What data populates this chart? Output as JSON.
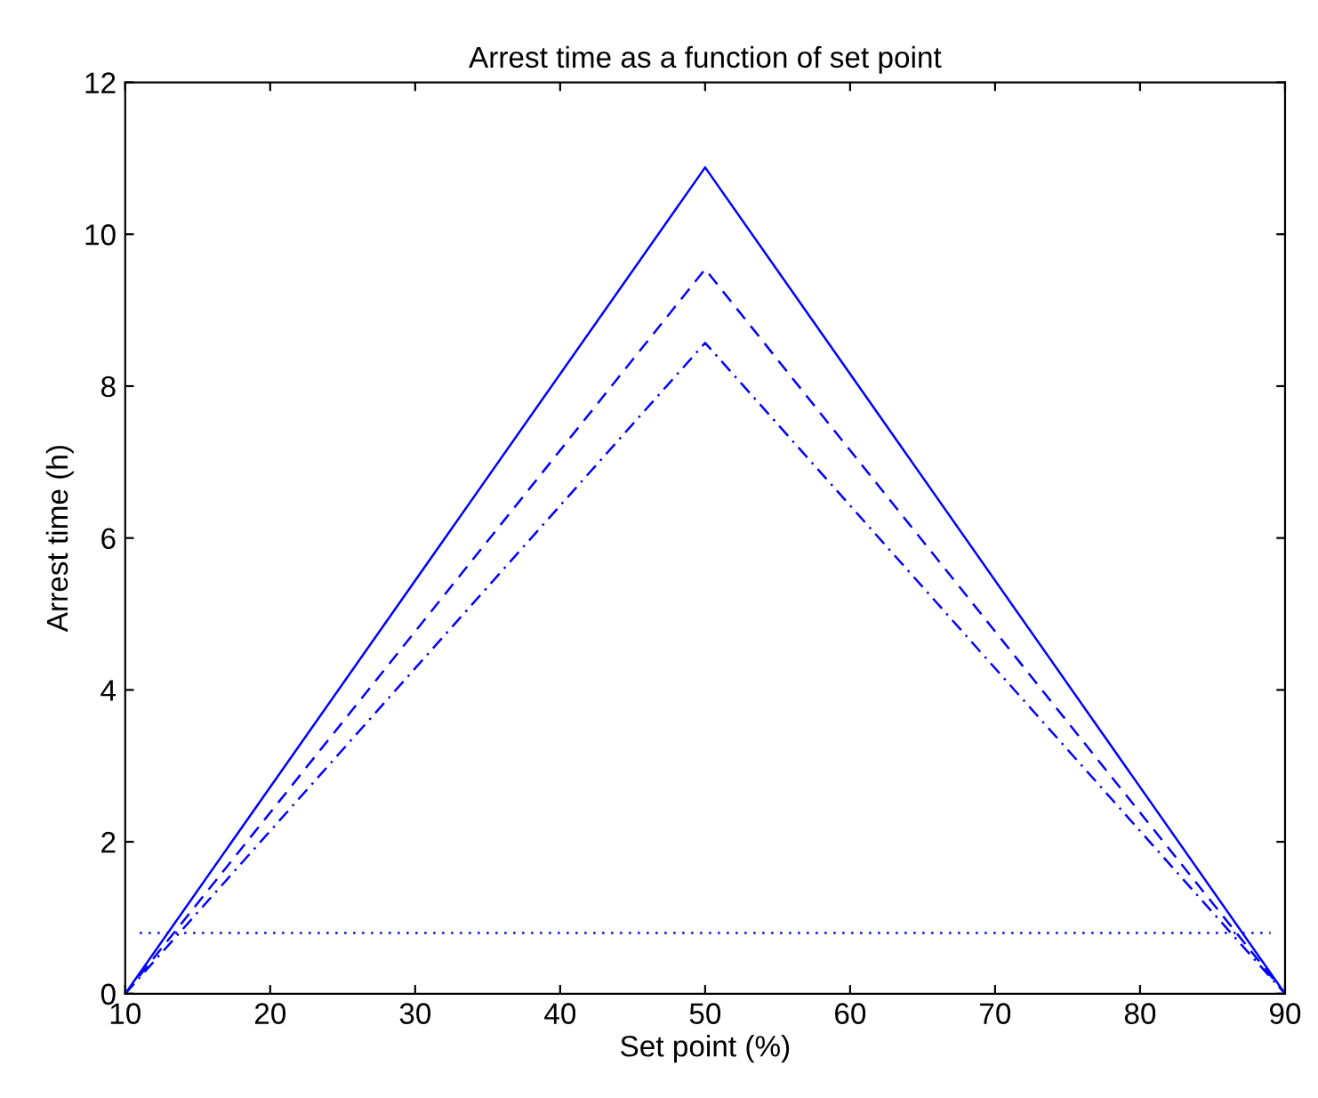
{
  "chart_data": {
    "type": "line",
    "title": "Arrest time as a function of set point",
    "xlabel": "Set point (%)",
    "ylabel": "Arrest time (h)",
    "xlim": [
      10,
      90
    ],
    "ylim": [
      0,
      12
    ],
    "xticks": [
      10,
      20,
      30,
      40,
      50,
      60,
      70,
      80,
      90
    ],
    "yticks": [
      0,
      2,
      4,
      6,
      8,
      10,
      12
    ],
    "grid": false,
    "legend": false,
    "series": [
      {
        "color": "#0000ff",
        "line_style": "solid",
        "x": [
          10,
          50,
          90
        ],
        "values": [
          0,
          10.88,
          0
        ]
      },
      {
        "color": "#0000ff",
        "line_style": "dashed",
        "x": [
          10,
          50,
          90
        ],
        "values": [
          0,
          9.54,
          0
        ]
      },
      {
        "color": "#0000ff",
        "line_style": "dashdot",
        "x": [
          10,
          50,
          90
        ],
        "values": [
          0,
          8.57,
          0
        ]
      },
      {
        "color": "#0000ff",
        "line_style": "dotted",
        "x": [
          11,
          89
        ],
        "values": [
          0.8,
          0.8
        ]
      }
    ]
  }
}
